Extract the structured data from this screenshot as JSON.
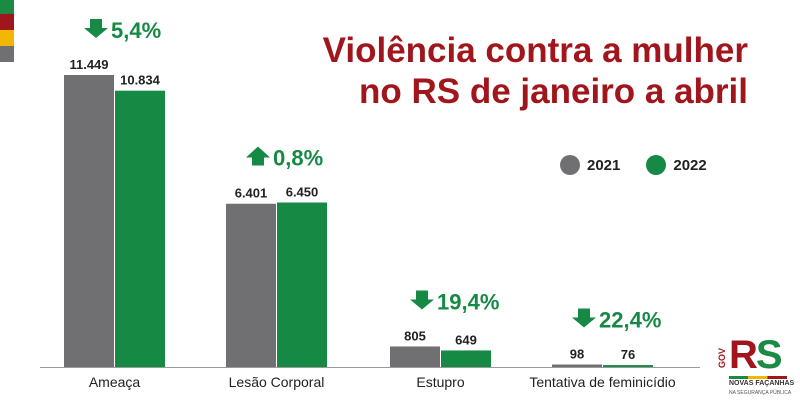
{
  "colors": {
    "series_2021": "#707073",
    "series_2022": "#168a44",
    "title": "#a1161c",
    "flag": [
      "#1a8a45",
      "#a1161c",
      "#f2b705",
      "#707073"
    ]
  },
  "title_lines": [
    "Violência contra a mulher",
    "no RS de janeiro a abril"
  ],
  "legend": [
    "2021",
    "2022"
  ],
  "logo": {
    "gov": "GOV",
    "mark": "RS",
    "line1": "NOVAS FAÇANHAS",
    "line2": "NA SEGURANÇA PÚBLICA"
  },
  "chart_data": {
    "type": "bar",
    "categories": [
      "Ameaça",
      "Lesão Corporal",
      "Estupro",
      "Tentativa de feminicídio"
    ],
    "series": [
      {
        "name": "2021",
        "values": [
          11449,
          6401,
          805,
          98
        ],
        "labels": [
          "11.449",
          "6.401",
          "805",
          "98"
        ]
      },
      {
        "name": "2022",
        "values": [
          10834,
          6450,
          649,
          76
        ],
        "labels": [
          "10.834",
          "6.450",
          "649",
          "76"
        ]
      }
    ],
    "changes": [
      {
        "direction": "down",
        "text": "5,4%"
      },
      {
        "direction": "up",
        "text": "0,8%"
      },
      {
        "direction": "down",
        "text": "19,4%"
      },
      {
        "direction": "down",
        "text": "22,4%"
      }
    ],
    "ylim": [
      0,
      11449
    ],
    "grid": false,
    "legend_position": "right"
  }
}
